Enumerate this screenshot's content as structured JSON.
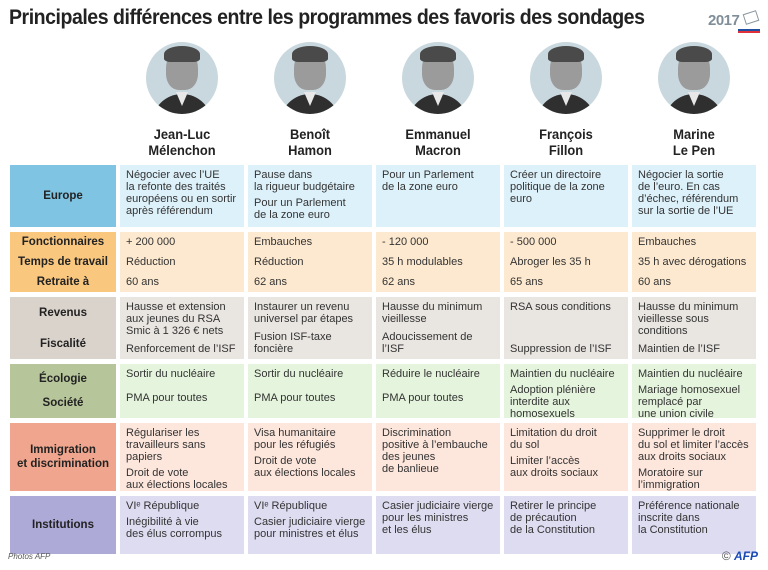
{
  "title": "Principales différences entre les programmes des favoris des sondages",
  "logo": {
    "year": "2017",
    "icon": "ballot-envelope-icon",
    "stripe_colors": [
      "#1f4fa0",
      "#ffffff",
      "#e0303a"
    ]
  },
  "candidates": [
    {
      "first": "Jean-Luc",
      "last": "Mélenchon",
      "photo": "portrait-photo"
    },
    {
      "first": "Benoît",
      "last": "Hamon",
      "photo": "portrait-photo"
    },
    {
      "first": "Emmanuel",
      "last": "Macron",
      "photo": "portrait-photo"
    },
    {
      "first": "François",
      "last": "Fillon",
      "photo": "portrait-photo"
    },
    {
      "first": "Marine",
      "last": "Le Pen",
      "photo": "portrait-photo"
    }
  ],
  "rows": [
    {
      "id": "europe",
      "categories": [
        "Europe"
      ],
      "color": "#7fc4e3",
      "cells": [
        [
          "Négocier avec l’UE\nla refonte des traités\neuropéens ou en sortir\naprès référendum"
        ],
        [
          "Pause dans\nla rigueur budgétaire",
          "Pour un Parlement\nde la zone euro"
        ],
        [
          "Pour un Parlement\nde la zone euro"
        ],
        [
          "Créer un directoire\npolitique de la zone\neuro"
        ],
        [
          "Négocier la sortie\nde l’euro. En cas\nd’échec, référendum\nsur la sortie de l’UE"
        ]
      ]
    },
    {
      "id": "emploi",
      "categories": [
        "Fonctionnaires",
        "Temps de travail",
        "Retraite à"
      ],
      "color": "#f9c77e",
      "cells": [
        [
          "+ 200 000",
          "Réduction",
          "60 ans"
        ],
        [
          "Embauches",
          "Réduction",
          "62 ans"
        ],
        [
          "- 120 000",
          "35 h modulables",
          "62 ans"
        ],
        [
          "- 500 000",
          "Abroger les 35 h",
          "65 ans"
        ],
        [
          "Embauches",
          "35 h avec dérogations",
          "60 ans"
        ]
      ]
    },
    {
      "id": "revenus",
      "categories": [
        "Revenus",
        "Fiscalité"
      ],
      "color": "#d9d3cc",
      "cells": [
        [
          "Hausse et extension\naux jeunes du RSA\nSmic à 1 326 € nets",
          "Renforcement de l’ISF"
        ],
        [
          "Instaurer un revenu\nuniversel par étapes",
          "Fusion ISF-taxe foncière"
        ],
        [
          "Hausse du minimum\nvieillesse",
          "Adoucissement de l’ISF"
        ],
        [
          "RSA sous conditions",
          "Suppression de l’ISF"
        ],
        [
          "Hausse du minimum\nvieillesse sous\nconditions",
          "Maintien de l’ISF"
        ]
      ]
    },
    {
      "id": "ecologie",
      "categories": [
        "Écologie",
        "Société"
      ],
      "color": "#b7c59a",
      "cells": [
        [
          "Sortir du nucléaire",
          "PMA pour toutes"
        ],
        [
          "Sortir du nucléaire",
          "PMA pour toutes"
        ],
        [
          "Réduire le nucléaire",
          "PMA pour toutes"
        ],
        [
          "Maintien du nucléaire",
          "Adoption plénière\ninterdite aux\nhomosexuels"
        ],
        [
          "Maintien du nucléaire",
          "Mariage homosexuel\nremplacé par\nune union civile"
        ]
      ]
    },
    {
      "id": "immigration",
      "categories": [
        "Immigration\net discrimination"
      ],
      "color": "#f0a68e",
      "cells": [
        [
          "Régulariser les\ntravailleurs sans papiers",
          "Droit de vote\naux élections locales"
        ],
        [
          "Visa humanitaire\npour les réfugiés",
          "Droit de vote\naux élections locales"
        ],
        [
          "Discrimination\npositive à l’embauche\ndes jeunes\nde banlieue"
        ],
        [
          "Limitation du droit\ndu sol",
          "Limiter l’accès\naux droits sociaux"
        ],
        [
          "Supprimer le droit\ndu sol et limiter l’accès\naux droits sociaux",
          "Moratoire sur\nl’immigration"
        ]
      ]
    },
    {
      "id": "institutions",
      "categories": [
        "Institutions"
      ],
      "color": "#aeaad8",
      "cells": [
        [
          "VIᵉ République",
          "Inégibilité à vie\ndes élus corrompus"
        ],
        [
          "VIᵉ République",
          "Casier judiciaire vierge\npour ministres et élus"
        ],
        [
          "Casier judiciaire vierge\npour les ministres\net les élus"
        ],
        [
          "Retirer le principe\nde précaution\nde la Constitution"
        ],
        [
          "Préférence nationale\ninscrite dans\nla Constitution"
        ]
      ]
    }
  ],
  "footer": {
    "credit": "Photos AFP",
    "copyright": "©",
    "agency": "AFP"
  }
}
